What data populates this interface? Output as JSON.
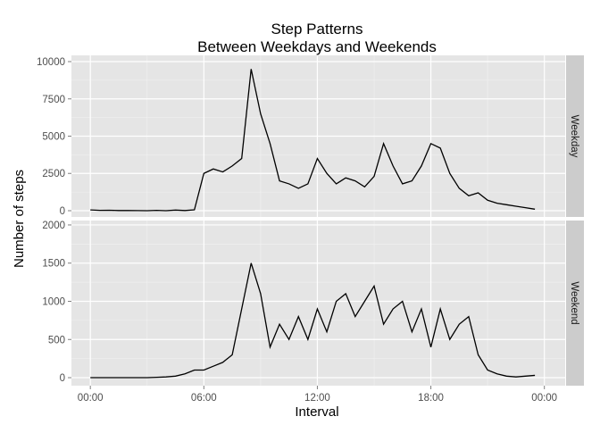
{
  "chart_data": [
    {
      "type": "line",
      "title": "Step Patterns\nBetween Weekdays and Weekends",
      "y_label": "Number of steps",
      "strip": "Weekday",
      "x": [
        0,
        0.5,
        1,
        1.5,
        2,
        2.5,
        3,
        3.5,
        4,
        4.5,
        5,
        5.5,
        6,
        6.5,
        7,
        7.5,
        8,
        8.5,
        9,
        9.5,
        10,
        10.5,
        11,
        11.5,
        12,
        12.5,
        13,
        13.5,
        14,
        14.5,
        15,
        15.5,
        16,
        16.5,
        17,
        17.5,
        18,
        18.5,
        19,
        19.5,
        20,
        20.5,
        21,
        21.5,
        22,
        22.5,
        23,
        23.5
      ],
      "values": [
        50,
        20,
        30,
        10,
        10,
        5,
        0,
        20,
        0,
        40,
        10,
        60,
        2500,
        2800,
        2600,
        3000,
        3500,
        9500,
        6500,
        4500,
        2000,
        1800,
        1500,
        1800,
        3500,
        2500,
        1800,
        2200,
        2000,
        1600,
        2300,
        4500,
        3000,
        1800,
        2000,
        3000,
        4500,
        4200,
        2500,
        1500,
        1000,
        1200,
        700,
        500,
        400,
        300,
        200,
        100
      ],
      "xlim": [
        -1,
        25.1
      ],
      "ylim": [
        -420,
        10420
      ],
      "yticks": [
        0,
        2500,
        5000,
        7500,
        10000
      ],
      "color": "#000000",
      "grid": true
    },
    {
      "type": "line",
      "x_label": "Interval",
      "strip": "Weekend",
      "x": [
        0,
        0.5,
        1,
        1.5,
        2,
        2.5,
        3,
        3.5,
        4,
        4.5,
        5,
        5.5,
        6,
        6.5,
        7,
        7.5,
        8,
        8.5,
        9,
        9.5,
        10,
        10.5,
        11,
        11.5,
        12,
        12.5,
        13,
        13.5,
        14,
        14.5,
        15,
        15.5,
        16,
        16.5,
        17,
        17.5,
        18,
        18.5,
        19,
        19.5,
        20,
        20.5,
        21,
        21.5,
        22,
        22.5,
        23,
        23.5
      ],
      "values": [
        0,
        0,
        0,
        0,
        0,
        0,
        0,
        5,
        10,
        20,
        50,
        100,
        100,
        150,
        200,
        300,
        900,
        1500,
        1100,
        400,
        700,
        500,
        800,
        500,
        900,
        600,
        1000,
        1100,
        800,
        1000,
        1200,
        700,
        900,
        1000,
        600,
        900,
        400,
        900,
        500,
        700,
        800,
        300,
        100,
        50,
        20,
        10,
        20,
        30
      ],
      "xlim": [
        -1,
        25.1
      ],
      "ylim": [
        -105,
        2058
      ],
      "yticks": [
        0,
        500,
        1000,
        1500,
        2000
      ],
      "xticks": [
        {
          "value": 0,
          "label": "00:00"
        },
        {
          "value": 6,
          "label": "06:00"
        },
        {
          "value": 12,
          "label": "12:00"
        },
        {
          "value": 18,
          "label": "18:00"
        },
        {
          "value": 24,
          "label": "00:00"
        }
      ],
      "color": "#000000",
      "grid": true
    }
  ]
}
